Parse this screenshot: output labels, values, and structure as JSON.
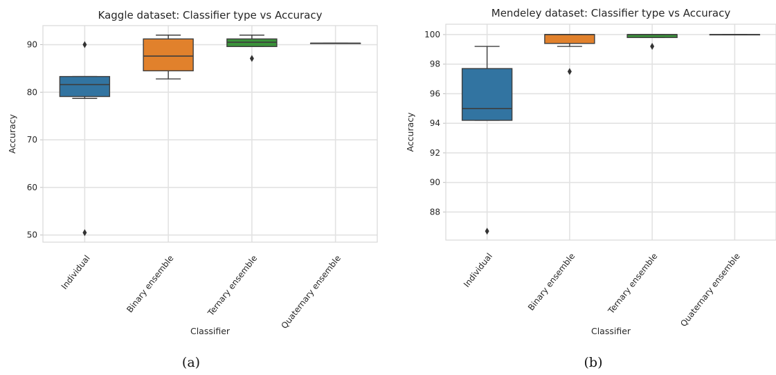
{
  "chart_data": [
    {
      "type": "box",
      "caption": "(a)",
      "title": "Kaggle dataset: Classifier type vs Accuracy",
      "xlabel": "Classifier",
      "ylabel": "Accuracy",
      "ylim": [
        48.5,
        94
      ],
      "yticks": [
        "50",
        "60",
        "70",
        "80",
        "90"
      ],
      "grid": true,
      "categories": [
        "Individual",
        "Binary ensemble",
        "Ternary ensemble",
        "Quaternary ensemble"
      ],
      "colors": [
        "#3274a1",
        "#e1812c",
        "#3a923a",
        "#c03d3e"
      ],
      "boxes": [
        {
          "whisker_low": 78.7,
          "q1": 79.1,
          "median": 81.6,
          "q3": 83.3,
          "whisker_high": 83.3,
          "outliers": [
            90.0,
            50.5
          ]
        },
        {
          "whisker_low": 82.8,
          "q1": 84.5,
          "median": 87.6,
          "q3": 91.2,
          "whisker_high": 92.0,
          "outliers": []
        },
        {
          "whisker_low": 89.6,
          "q1": 89.6,
          "median": 90.5,
          "q3": 91.2,
          "whisker_high": 92.0,
          "outliers": [
            87.1
          ]
        },
        {
          "whisker_low": 90.3,
          "q1": 90.3,
          "median": 90.3,
          "q3": 90.3,
          "whisker_high": 90.3,
          "outliers": []
        }
      ]
    },
    {
      "type": "box",
      "caption": "(b)",
      "title": "Mendeley dataset: Classifier type vs Accuracy",
      "xlabel": "Classifier",
      "ylabel": "Accuracy",
      "ylim": [
        86.1,
        100.7
      ],
      "yticks": [
        "88",
        "90",
        "92",
        "94",
        "96",
        "98",
        "100"
      ],
      "grid": true,
      "categories": [
        "Individual",
        "Binary ensemble",
        "Ternary ensemble",
        "Quaternary ensemble"
      ],
      "colors": [
        "#3274a1",
        "#e1812c",
        "#3a923a",
        "#c03d3e"
      ],
      "boxes": [
        {
          "whisker_low": 94.2,
          "q1": 94.2,
          "median": 95.0,
          "q3": 97.7,
          "whisker_high": 99.2,
          "outliers": [
            86.7
          ]
        },
        {
          "whisker_low": 99.2,
          "q1": 99.4,
          "median": 100.0,
          "q3": 100.0,
          "whisker_high": 100.0,
          "outliers": [
            97.5
          ]
        },
        {
          "whisker_low": 99.8,
          "q1": 99.8,
          "median": 100.0,
          "q3": 100.0,
          "whisker_high": 100.0,
          "outliers": [
            99.2
          ]
        },
        {
          "whisker_low": 100.0,
          "q1": 100.0,
          "median": 100.0,
          "q3": 100.0,
          "whisker_high": 100.0,
          "outliers": []
        }
      ]
    }
  ]
}
